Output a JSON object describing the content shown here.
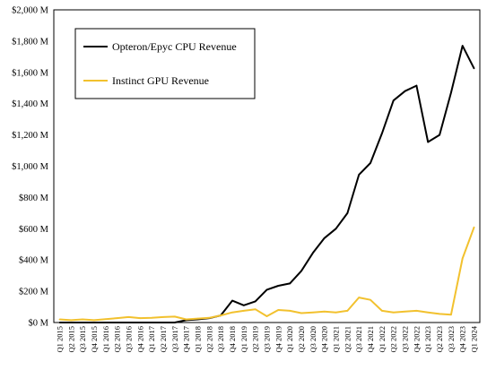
{
  "chart_data": {
    "type": "line",
    "title": "",
    "xlabel": "",
    "ylabel": "",
    "ylim": [
      0,
      2000
    ],
    "y_ticks": [
      0,
      200,
      400,
      600,
      800,
      1000,
      1200,
      1400,
      1600,
      1800,
      2000
    ],
    "y_tick_labels": [
      "$0 M",
      "$200 M",
      "$400 M",
      "$600 M",
      "$800 M",
      "$1,000 M",
      "$1,200 M",
      "$1,400 M",
      "$1,600 M",
      "$1,800 M",
      "$2,000 M"
    ],
    "grid": false,
    "legend_position": "top-left",
    "categories": [
      "Q1 2015",
      "Q2 2015",
      "Q3 2015",
      "Q4 2015",
      "Q1 2016",
      "Q2 2016",
      "Q3 2016",
      "Q4 2016",
      "Q1 2017",
      "Q2 2017",
      "Q3 2017",
      "Q4 2017",
      "Q1 2018",
      "Q2 2018",
      "Q3 2018",
      "Q4 2018",
      "Q1 2019",
      "Q2 2019",
      "Q3 2019",
      "Q4 2019",
      "Q1 2020",
      "Q2 2020",
      "Q3 2020",
      "Q4 2020",
      "Q1 2021",
      "Q2 2021",
      "Q3 2021",
      "Q4 2021",
      "Q1 2022",
      "Q2 2022",
      "Q3 2022",
      "Q4 2022",
      "Q1 2023",
      "Q2 2023",
      "Q3 2023",
      "Q4 2023",
      "Q1 2024"
    ],
    "series": [
      {
        "name": "Opteron/Epyc CPU Revenue",
        "color": "#000000",
        "values": [
          0,
          0,
          0,
          0,
          0,
          0,
          0,
          0,
          0,
          0,
          0,
          15,
          20,
          28,
          45,
          140,
          110,
          135,
          210,
          235,
          250,
          330,
          445,
          540,
          600,
          700,
          945,
          1020,
          1210,
          1420,
          1480,
          1515,
          1155,
          1200,
          1470,
          1770,
          1625
        ]
      },
      {
        "name": "Instinct GPU Revenue",
        "color": "#F2C12E",
        "values": [
          20,
          15,
          20,
          15,
          22,
          28,
          35,
          28,
          30,
          35,
          38,
          20,
          25,
          30,
          45,
          65,
          75,
          85,
          40,
          80,
          75,
          60,
          65,
          70,
          65,
          75,
          160,
          145,
          75,
          65,
          70,
          75,
          65,
          55,
          50,
          410,
          610
        ]
      }
    ]
  }
}
